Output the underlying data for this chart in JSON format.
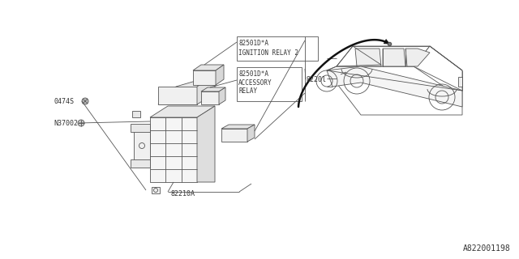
{
  "bg_color": "#ffffff",
  "line_color": "#555555",
  "text_color": "#333333",
  "title_bottom": "A822001198",
  "labels": {
    "ignition_relay_code": "82501D*A",
    "ignition_relay_text": "IGNITION RELAY 2",
    "accessory_relay_code": "82501D*A",
    "accessory_relay_text1": "ACCESSORY",
    "accessory_relay_text2": "RELAY",
    "fuse_box": "82210A",
    "wire_harness": "8220l",
    "bolt": "N37002",
    "screw": "0474S"
  },
  "font_size_label": 6.0,
  "font_size_bottom": 7.0
}
